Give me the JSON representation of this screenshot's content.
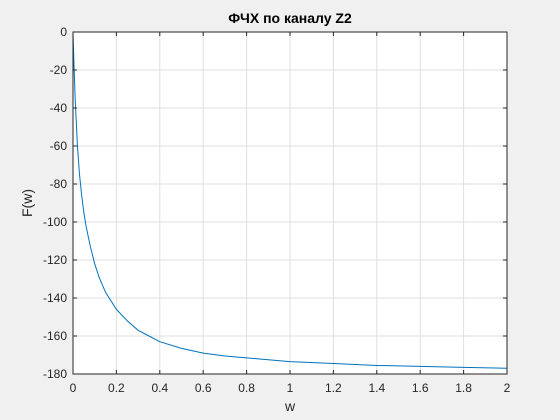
{
  "chart_data": {
    "type": "line",
    "title": "ФЧХ по каналу Z2",
    "xlabel": "w",
    "ylabel": "F(w)",
    "xlim": [
      0,
      2
    ],
    "ylim": [
      -180,
      0
    ],
    "xticks": [
      0,
      0.2,
      0.4,
      0.6,
      0.8,
      1,
      1.2,
      1.4,
      1.6,
      1.8,
      2
    ],
    "xtick_labels": [
      "0",
      "0.2",
      "0.4",
      "0.6",
      "0.8",
      "1",
      "1.2",
      "1.4",
      "1.6",
      "1.8",
      "2"
    ],
    "yticks": [
      -180,
      -160,
      -140,
      -120,
      -100,
      -80,
      -60,
      -40,
      -20,
      0
    ],
    "ytick_labels": [
      "-180",
      "-160",
      "-140",
      "-120",
      "-100",
      "-80",
      "-60",
      "-40",
      "-20",
      "0"
    ],
    "grid": true,
    "series": [
      {
        "color": "#0072bd",
        "x": [
          0,
          0.005,
          0.01,
          0.02,
          0.03,
          0.04,
          0.05,
          0.06,
          0.08,
          0.1,
          0.12,
          0.15,
          0.2,
          0.25,
          0.3,
          0.35,
          0.4,
          0.5,
          0.6,
          0.7,
          0.8,
          0.9,
          1.0,
          1.2,
          1.4,
          1.6,
          1.8,
          2.0
        ],
        "y": [
          0,
          -19,
          -35,
          -59,
          -75,
          -86,
          -95,
          -102,
          -113,
          -122,
          -129,
          -137,
          -146,
          -152,
          -157,
          -160,
          -163,
          -166.5,
          -169,
          -170.5,
          -171.5,
          -172.5,
          -173.5,
          -174.5,
          -175.5,
          -176,
          -176.5,
          -177
        ]
      }
    ]
  }
}
